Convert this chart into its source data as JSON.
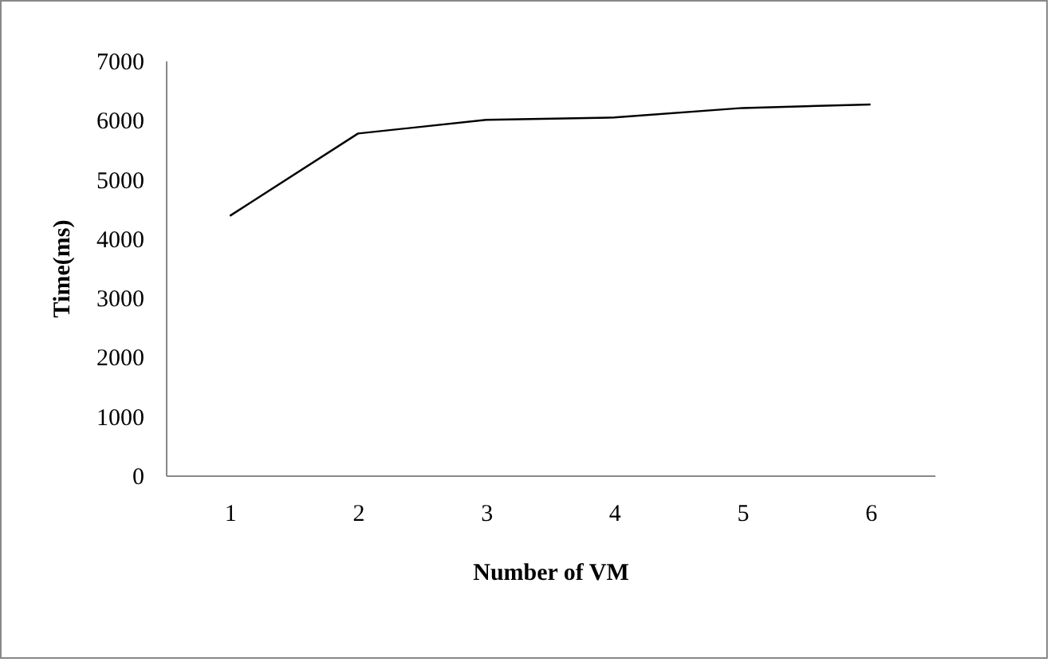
{
  "chart_data": {
    "type": "line",
    "xlabel": "Number of VM",
    "ylabel": "Time(ms)",
    "categories": [
      "1",
      "2",
      "3",
      "4",
      "5",
      "6"
    ],
    "series": [
      {
        "color": "#000000",
        "values": [
          4380,
          5770,
          6000,
          6040,
          6200,
          6260
        ]
      }
    ],
    "ylim": [
      0,
      7000
    ],
    "yticks": [
      0,
      1000,
      2000,
      3000,
      4000,
      5000,
      6000,
      7000
    ],
    "grid": false,
    "legend": false,
    "marker": "none"
  }
}
